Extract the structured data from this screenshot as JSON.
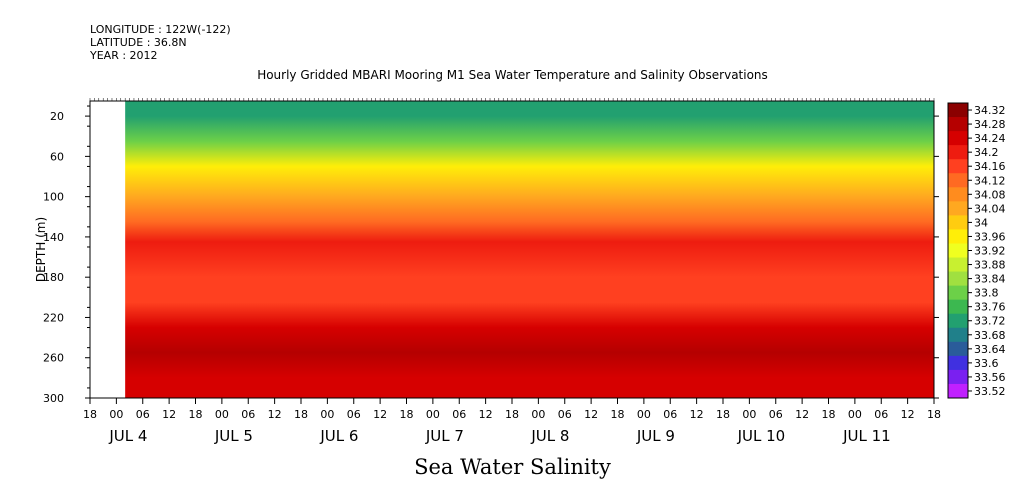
{
  "header": {
    "longitude": "LONGITUDE : 122W(-122)",
    "latitude": "LATITUDE : 36.8N",
    "year": "YEAR : 2012"
  },
  "chart_data": {
    "type": "heatmap",
    "title": "Hourly Gridded MBARI Mooring M1 Sea Water Temperature and Salinity Observations",
    "xlabel": "Sea Water Salinity",
    "ylabel": "DEPTH (m)",
    "ylim": [
      300,
      5
    ],
    "y_ticks": [
      20,
      60,
      100,
      140,
      180,
      220,
      260,
      300
    ],
    "x_range_hours": [
      -6,
      186
    ],
    "x_hour_ticks": [
      "18",
      "00",
      "06",
      "12",
      "18",
      "00",
      "06",
      "12",
      "18",
      "00",
      "06",
      "12",
      "18",
      "00",
      "06",
      "12",
      "18",
      "00",
      "06",
      "12",
      "18",
      "00",
      "06",
      "12",
      "18",
      "00",
      "06",
      "12",
      "18",
      "00",
      "06",
      "12",
      "18"
    ],
    "x_day_labels": [
      "JUL 4",
      "JUL 5",
      "JUL 6",
      "JUL 7",
      "JUL 8",
      "JUL 9",
      "JUL 10",
      "JUL 11"
    ],
    "data_start_hour": 2,
    "colorbar": {
      "levels": [
        "34.32",
        "34.28",
        "34.24",
        "34.2",
        "34.16",
        "34.12",
        "34.08",
        "34.04",
        "34",
        "33.96",
        "33.92",
        "33.88",
        "33.84",
        "33.8",
        "33.76",
        "33.72",
        "33.68",
        "33.64",
        "33.6",
        "33.56",
        "33.52"
      ],
      "colors": [
        "#8b0000",
        "#b50000",
        "#d60000",
        "#ee1c10",
        "#ff4020",
        "#ff6a22",
        "#ff8c1e",
        "#ffa820",
        "#ffcc10",
        "#ffee08",
        "#f0ff20",
        "#c8f030",
        "#a0e040",
        "#6cd048",
        "#3cb850",
        "#22a070",
        "#20808a",
        "#2a5c9a",
        "#4030e0",
        "#7a20f0",
        "#c020ff"
      ]
    },
    "depth_profile": [
      {
        "depth": 5,
        "value": 33.7
      },
      {
        "depth": 20,
        "value": 33.7
      },
      {
        "depth": 45,
        "value": 33.78
      },
      {
        "depth": 70,
        "value": 33.92
      },
      {
        "depth": 100,
        "value": 34.02
      },
      {
        "depth": 125,
        "value": 34.08
      },
      {
        "depth": 145,
        "value": 34.18
      },
      {
        "depth": 180,
        "value": 34.15
      },
      {
        "depth": 205,
        "value": 34.13
      },
      {
        "depth": 230,
        "value": 34.22
      },
      {
        "depth": 255,
        "value": 34.27
      },
      {
        "depth": 280,
        "value": 34.23
      },
      {
        "depth": 300,
        "value": 34.2
      }
    ]
  }
}
